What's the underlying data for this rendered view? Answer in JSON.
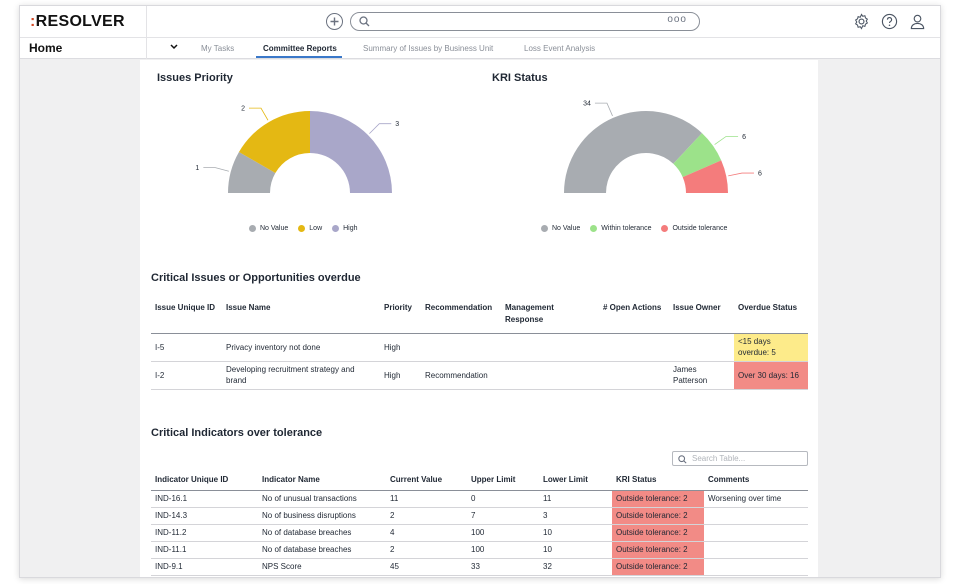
{
  "app": {
    "logo": "RESOLVER",
    "logo_prefix": ":"
  },
  "topbar": {
    "search_dots": "ooo"
  },
  "nav": {
    "home": "Home",
    "tabs": [
      {
        "label": "My Tasks"
      },
      {
        "label": "Committee Reports",
        "active": true
      },
      {
        "label": "Summary of Issues by Business Unit"
      },
      {
        "label": "Loss Event Analysis"
      }
    ]
  },
  "issues_chart": {
    "title": "Issues Priority",
    "legend": [
      "No Value",
      "Low",
      "High"
    ]
  },
  "kri_chart": {
    "title": "KRI Status",
    "legend": [
      "No Value",
      "Within tolerance",
      "Outside tolerance"
    ]
  },
  "chart_data": [
    {
      "type": "pie",
      "variant": "semi-donut",
      "title": "Issues Priority",
      "categories": [
        "No Value",
        "Low",
        "High"
      ],
      "values": [
        1,
        2,
        3
      ],
      "colors": [
        "#a8acb1",
        "#e4b813",
        "#a9a7c9"
      ],
      "legend_position": "bottom"
    },
    {
      "type": "pie",
      "variant": "semi-donut",
      "title": "KRI Status",
      "categories": [
        "No Value",
        "Within tolerance",
        "Outside tolerance"
      ],
      "values": [
        34,
        6,
        6
      ],
      "colors": [
        "#a8acb1",
        "#9ce28a",
        "#f47c7c"
      ],
      "legend_position": "bottom"
    }
  ],
  "issues_section": {
    "title": "Critical Issues or Opportunities overdue",
    "headers": [
      "Issue Unique ID",
      "Issue Name",
      "Priority",
      "Recommendation",
      "Management Response",
      "# Open Actions",
      "Issue Owner",
      "Overdue Status"
    ],
    "rows": [
      {
        "id": "I-5",
        "name": "Privacy inventory not done",
        "priority": "High",
        "recommendation": "",
        "response": "",
        "actions": "",
        "owner": "",
        "status": "<15 days overdue: 5",
        "status_color": "#fdeb8a"
      },
      {
        "id": "I-2",
        "name": "Developing recruitment strategy and brand",
        "priority": "High",
        "recommendation": "Recommendation",
        "response": "",
        "actions": "",
        "owner": "James Patterson",
        "status": "Over 30 days: 16",
        "status_color": "#f28b86"
      }
    ]
  },
  "indicators_section": {
    "title": "Critical Indicators over tolerance",
    "search_placeholder": "Search Table...",
    "headers": [
      "Indicator Unique ID",
      "Indicator Name",
      "Current Value",
      "Upper Limit",
      "Lower Limit",
      "KRI Status",
      "Comments"
    ],
    "rows": [
      {
        "id": "IND-16.1",
        "name": "No of unusual transactions",
        "current": "11",
        "upper": "0",
        "lower": "11",
        "status": "Outside tolerance: 2",
        "comments": "Worsening over time"
      },
      {
        "id": "IND-14.3",
        "name": "No of business disruptions",
        "current": "2",
        "upper": "7",
        "lower": "3",
        "status": "Outside tolerance: 2",
        "comments": ""
      },
      {
        "id": "IND-11.2",
        "name": "No of database breaches",
        "current": "4",
        "upper": "100",
        "lower": "10",
        "status": "Outside tolerance: 2",
        "comments": ""
      },
      {
        "id": "IND-11.1",
        "name": "No of database breaches",
        "current": "2",
        "upper": "100",
        "lower": "10",
        "status": "Outside tolerance: 2",
        "comments": ""
      },
      {
        "id": "IND-9.1",
        "name": "NPS Score",
        "current": "45",
        "upper": "33",
        "lower": "32",
        "status": "Outside tolerance: 2",
        "comments": ""
      }
    ],
    "status_color": "#f28b86"
  }
}
